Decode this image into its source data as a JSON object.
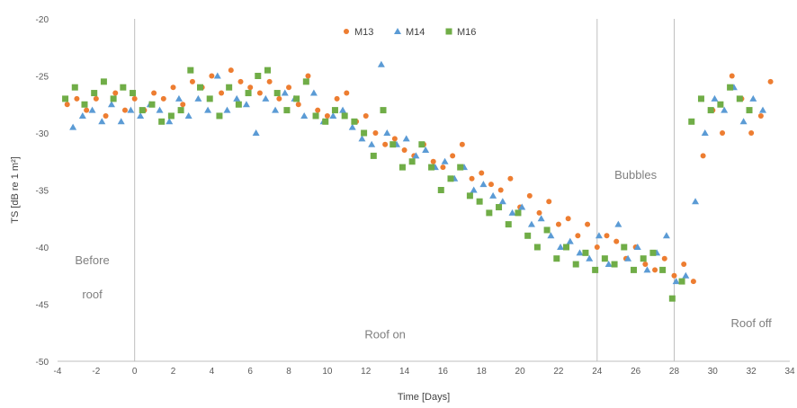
{
  "chart_data": {
    "type": "scatter",
    "title": "",
    "xlabel": "Time [Days]",
    "ylabel": "TS [dB re 1 m²]",
    "xlim": [
      -4,
      34
    ],
    "ylim": [
      -50,
      -20
    ],
    "xticks": [
      -4,
      -2,
      0,
      2,
      4,
      6,
      8,
      10,
      12,
      14,
      16,
      18,
      20,
      22,
      24,
      26,
      28,
      30,
      32,
      34
    ],
    "yticks": [
      -20,
      -25,
      -30,
      -35,
      -40,
      -45,
      -50
    ],
    "grid": false,
    "legend_position": "top-center",
    "vlines": [
      0,
      24,
      28
    ],
    "annotations": [
      {
        "text": "Before",
        "x": -2.2,
        "y": -41.5
      },
      {
        "text": "roof",
        "x": -2.2,
        "y": -44.5
      },
      {
        "text": "Roof on",
        "x": 13,
        "y": -48
      },
      {
        "text": "Bubbles",
        "x": 26,
        "y": -34
      },
      {
        "text": "Roof off",
        "x": 32,
        "y": -47
      }
    ],
    "colors": {
      "M13": "#ED7D31",
      "M14": "#5B9BD5",
      "M16": "#70AD47",
      "axis": "#bfbfbf",
      "vline": "#bfbfbf"
    },
    "series": [
      {
        "name": "M13",
        "marker": "circle",
        "x": [
          -3.5,
          -3,
          -2.5,
          -2,
          -1.5,
          -1,
          -0.5,
          0,
          0.5,
          1,
          1.5,
          2,
          2.5,
          3,
          3.5,
          4,
          4.5,
          5,
          5.5,
          6,
          6.5,
          7,
          7.5,
          8,
          8.5,
          9,
          9.5,
          10,
          10.5,
          11,
          11.5,
          12,
          12.5,
          13,
          13.5,
          14,
          14.5,
          15,
          15.5,
          16,
          16.5,
          17,
          17.5,
          18,
          18.5,
          19,
          19.5,
          20,
          20.5,
          21,
          21.5,
          22,
          22.5,
          23,
          23.5,
          24,
          24.5,
          25,
          25.5,
          26,
          26.5,
          27,
          27.5,
          28,
          28.5,
          29,
          29.5,
          30,
          30.5,
          31,
          31.5,
          32,
          32.5,
          33
        ],
        "y": [
          -27.5,
          -27,
          -28,
          -27,
          -28.5,
          -26.5,
          -28,
          -27,
          -28,
          -26.5,
          -27,
          -26,
          -27.5,
          -25.5,
          -26,
          -25,
          -26.5,
          -24.5,
          -25.5,
          -26,
          -26.5,
          -25.5,
          -27,
          -26,
          -27.5,
          -25,
          -28,
          -28.5,
          -27,
          -26.5,
          -29,
          -28.5,
          -30,
          -31,
          -30.5,
          -31.5,
          -32,
          -31,
          -32.5,
          -33,
          -32,
          -31,
          -34,
          -33.5,
          -34.5,
          -35,
          -34,
          -36.5,
          -35.5,
          -37,
          -36,
          -38,
          -37.5,
          -39,
          -38,
          -40,
          -39,
          -39.5,
          -41,
          -40,
          -41.5,
          -42,
          -41,
          -42.5,
          -41.5,
          -43,
          -32,
          -28,
          -30,
          -25,
          -27,
          -30,
          -28.5,
          -25.5
        ]
      },
      {
        "name": "M14",
        "marker": "triangle",
        "x": [
          -3.2,
          -2.7,
          -2.2,
          -1.7,
          -1.2,
          -0.7,
          -0.2,
          0.3,
          0.8,
          1.3,
          1.8,
          2.3,
          2.8,
          3.3,
          3.8,
          4.3,
          4.8,
          5.3,
          5.8,
          6.3,
          6.8,
          7.3,
          7.8,
          8.3,
          8.8,
          9.3,
          9.8,
          10.3,
          10.8,
          11.3,
          11.8,
          12.3,
          12.8,
          13.1,
          13.6,
          14.1,
          14.6,
          15.1,
          15.6,
          16.1,
          16.6,
          17.1,
          17.6,
          18.1,
          18.6,
          19.1,
          19.6,
          20.1,
          20.6,
          21.1,
          21.6,
          22.1,
          22.6,
          23.1,
          23.6,
          24.1,
          24.6,
          25.1,
          25.6,
          26.1,
          26.6,
          27.1,
          27.6,
          28.1,
          28.6,
          29.1,
          29.6,
          30.1,
          30.6,
          31.1,
          31.6,
          32.1,
          32.6
        ],
        "y": [
          -29.5,
          -28.5,
          -28,
          -29,
          -27.5,
          -29,
          -28,
          -28.5,
          -27.5,
          -28,
          -29,
          -27,
          -28.5,
          -27,
          -28,
          -25,
          -28,
          -27,
          -27.5,
          -30,
          -27,
          -28,
          -26.5,
          -27,
          -28.5,
          -26.5,
          -29,
          -28.5,
          -28,
          -29.5,
          -30.5,
          -31,
          -24,
          -30,
          -31,
          -30.5,
          -32,
          -31.5,
          -33,
          -32.5,
          -34,
          -33,
          -35,
          -34.5,
          -35.5,
          -36,
          -37,
          -36.5,
          -38,
          -37.5,
          -39,
          -40,
          -39.5,
          -40.5,
          -41,
          -39,
          -41.5,
          -38,
          -41,
          -40,
          -42,
          -40.5,
          -39,
          -43,
          -42.5,
          -36,
          -30,
          -27,
          -28,
          -26,
          -29,
          -27,
          -28
        ]
      },
      {
        "name": "M16",
        "marker": "square",
        "x": [
          -3.6,
          -3.1,
          -2.6,
          -2.1,
          -1.6,
          -1.1,
          -0.6,
          -0.1,
          0.4,
          0.9,
          1.4,
          1.9,
          2.4,
          2.9,
          3.4,
          3.9,
          4.4,
          4.9,
          5.4,
          5.9,
          6.4,
          6.9,
          7.4,
          7.9,
          8.4,
          8.9,
          9.4,
          9.9,
          10.4,
          10.9,
          11.4,
          11.9,
          12.4,
          12.9,
          13.4,
          13.9,
          14.4,
          14.9,
          15.4,
          15.9,
          16.4,
          16.9,
          17.4,
          17.9,
          18.4,
          18.9,
          19.4,
          19.9,
          20.4,
          20.9,
          21.4,
          21.9,
          22.4,
          22.9,
          23.4,
          23.9,
          24.4,
          24.9,
          25.4,
          25.9,
          26.4,
          26.9,
          27.4,
          27.9,
          28.4,
          28.9,
          29.4,
          29.9,
          30.4,
          30.9,
          31.4,
          31.9
        ],
        "y": [
          -27,
          -26,
          -27.5,
          -26.5,
          -25.5,
          -27,
          -26,
          -26.5,
          -28,
          -27.5,
          -29,
          -28.5,
          -28,
          -24.5,
          -26,
          -27,
          -28.5,
          -26,
          -27.5,
          -26.5,
          -25,
          -24.5,
          -26.5,
          -28,
          -27,
          -25.5,
          -28.5,
          -29,
          -28,
          -28.5,
          -29,
          -30,
          -32,
          -28,
          -31,
          -33,
          -32.5,
          -31,
          -33,
          -35,
          -34,
          -33,
          -35.5,
          -36,
          -37,
          -36.5,
          -38,
          -37,
          -39,
          -40,
          -38.5,
          -41,
          -40,
          -41.5,
          -40.5,
          -42,
          -41,
          -41.5,
          -40,
          -42,
          -41,
          -40.5,
          -42,
          -44.5,
          -43,
          -29,
          -27,
          -28,
          -27.5,
          -26,
          -27,
          -28
        ]
      }
    ]
  }
}
